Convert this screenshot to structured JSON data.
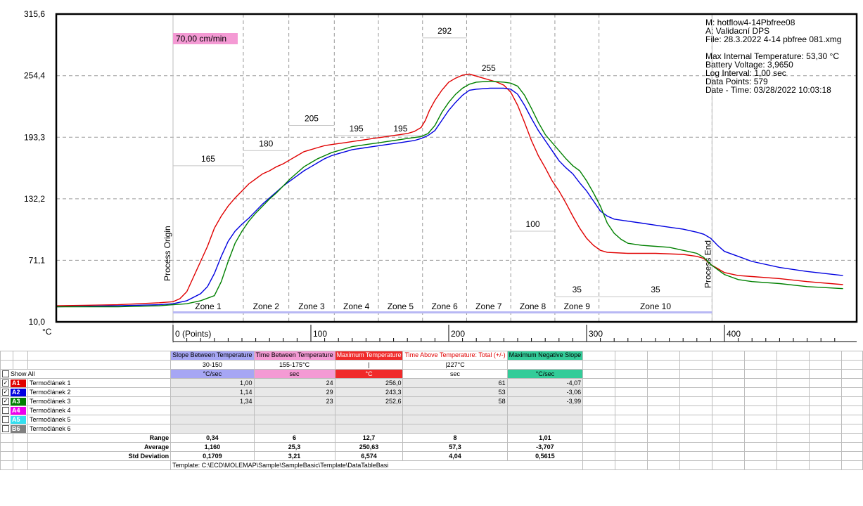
{
  "speed_label": "70,00 cm/min",
  "chart_data": {
    "type": "line",
    "xlabel": "(Points)",
    "ylabel": "°C",
    "x_tick_labels": [
      "0 (Points)",
      "100",
      "200",
      "300",
      "400"
    ],
    "x_ticks": [
      0,
      100,
      200,
      300,
      400
    ],
    "xlim": [
      -85,
      486
    ],
    "y_ticks": [
      "315,6",
      "254,4",
      "193,3",
      "132,2",
      "71,1",
      "10,0"
    ],
    "y_tick_values": [
      315.6,
      254.4,
      193.3,
      132.2,
      71.1,
      10.0
    ],
    "ylim": [
      10.0,
      315.6
    ],
    "grid": true,
    "process_origin_label": "Process Origin",
    "process_origin_x": 0,
    "process_end_label": "Process End",
    "process_end_x": 391,
    "zones": [
      {
        "name": "Zone 1",
        "start": 0,
        "end": 51,
        "setpoint": "165",
        "setpoint_value": 165
      },
      {
        "name": "Zone 2",
        "start": 51,
        "end": 84,
        "setpoint": "180",
        "setpoint_value": 180
      },
      {
        "name": "Zone 3",
        "start": 84,
        "end": 117,
        "setpoint": "205",
        "setpoint_value": 205
      },
      {
        "name": "Zone 4",
        "start": 117,
        "end": 149,
        "setpoint": "195",
        "setpoint_value": 195
      },
      {
        "name": "Zone 5",
        "start": 149,
        "end": 181,
        "setpoint": "195",
        "setpoint_value": 195
      },
      {
        "name": "Zone 6",
        "start": 181,
        "end": 213,
        "setpoint": "292",
        "setpoint_value": 292
      },
      {
        "name": "Zone 7",
        "start": 213,
        "end": 245,
        "setpoint": "255",
        "setpoint_value": 255
      },
      {
        "name": "Zone 8",
        "start": 245,
        "end": 277,
        "setpoint": "100",
        "setpoint_value": 100
      },
      {
        "name": "Zone 9",
        "start": 277,
        "end": 309,
        "setpoint": "35",
        "setpoint_value": 35
      },
      {
        "name": "Zone 10",
        "start": 309,
        "end": 391,
        "setpoint": "35",
        "setpoint_value": 35
      }
    ],
    "info": [
      "M: hotflow4-14Pbfree08",
      "A: Validacní DPS",
      "File: 28.3.2022 4-14 pbfree 081.xmg",
      "",
      "Max Internal Temperature:  53,30 °C",
      "Battery Voltage: 3,9650",
      "Log Interval: 1,00 sec",
      "Data Points: 579",
      "Date - Time: 03/28/2022 10:03:18"
    ],
    "series": [
      {
        "name": "A1",
        "color": "#e00000",
        "points": [
          [
            -85,
            26
          ],
          [
            -40,
            27
          ],
          [
            -10,
            29
          ],
          [
            0,
            30
          ],
          [
            5,
            33
          ],
          [
            10,
            40
          ],
          [
            15,
            55
          ],
          [
            20,
            70
          ],
          [
            25,
            85
          ],
          [
            30,
            103
          ],
          [
            35,
            115
          ],
          [
            40,
            125
          ],
          [
            45,
            133
          ],
          [
            50,
            140
          ],
          [
            55,
            147
          ],
          [
            60,
            152
          ],
          [
            65,
            157
          ],
          [
            70,
            160
          ],
          [
            75,
            164
          ],
          [
            80,
            167
          ],
          [
            85,
            171
          ],
          [
            90,
            175
          ],
          [
            95,
            179
          ],
          [
            100,
            181
          ],
          [
            105,
            183
          ],
          [
            110,
            185
          ],
          [
            115,
            186
          ],
          [
            120,
            187
          ],
          [
            125,
            188
          ],
          [
            130,
            189
          ],
          [
            135,
            190
          ],
          [
            140,
            191
          ],
          [
            145,
            192
          ],
          [
            150,
            193
          ],
          [
            155,
            194
          ],
          [
            160,
            195
          ],
          [
            165,
            196
          ],
          [
            170,
            197
          ],
          [
            175,
            199
          ],
          [
            180,
            203
          ],
          [
            183,
            210
          ],
          [
            186,
            220
          ],
          [
            190,
            230
          ],
          [
            195,
            240
          ],
          [
            200,
            248
          ],
          [
            205,
            252
          ],
          [
            210,
            255
          ],
          [
            215,
            256
          ],
          [
            220,
            254
          ],
          [
            225,
            252
          ],
          [
            230,
            250
          ],
          [
            235,
            248
          ],
          [
            240,
            245
          ],
          [
            245,
            238
          ],
          [
            250,
            225
          ],
          [
            255,
            208
          ],
          [
            260,
            190
          ],
          [
            265,
            175
          ],
          [
            270,
            163
          ],
          [
            275,
            150
          ],
          [
            280,
            140
          ],
          [
            285,
            128
          ],
          [
            290,
            115
          ],
          [
            295,
            103
          ],
          [
            300,
            93
          ],
          [
            305,
            86
          ],
          [
            310,
            81
          ],
          [
            315,
            79
          ],
          [
            330,
            78
          ],
          [
            350,
            78
          ],
          [
            370,
            77
          ],
          [
            380,
            75
          ],
          [
            385,
            73
          ],
          [
            390,
            67
          ],
          [
            395,
            63
          ],
          [
            400,
            59
          ],
          [
            410,
            56
          ],
          [
            420,
            55
          ],
          [
            440,
            53
          ],
          [
            460,
            50
          ],
          [
            486,
            47
          ]
        ]
      },
      {
        "name": "A2",
        "color": "#0000e0",
        "points": [
          [
            -85,
            25
          ],
          [
            -40,
            26
          ],
          [
            -10,
            27
          ],
          [
            0,
            28
          ],
          [
            10,
            31
          ],
          [
            20,
            38
          ],
          [
            25,
            45
          ],
          [
            30,
            58
          ],
          [
            35,
            75
          ],
          [
            40,
            90
          ],
          [
            45,
            100
          ],
          [
            50,
            107
          ],
          [
            55,
            113
          ],
          [
            60,
            120
          ],
          [
            65,
            127
          ],
          [
            70,
            133
          ],
          [
            75,
            139
          ],
          [
            80,
            145
          ],
          [
            85,
            150
          ],
          [
            90,
            155
          ],
          [
            95,
            160
          ],
          [
            100,
            164
          ],
          [
            105,
            168
          ],
          [
            110,
            172
          ],
          [
            115,
            175
          ],
          [
            120,
            177
          ],
          [
            125,
            179
          ],
          [
            130,
            181
          ],
          [
            135,
            182
          ],
          [
            140,
            183
          ],
          [
            145,
            184
          ],
          [
            150,
            185
          ],
          [
            155,
            186
          ],
          [
            160,
            187
          ],
          [
            165,
            188
          ],
          [
            170,
            189
          ],
          [
            175,
            190
          ],
          [
            180,
            192
          ],
          [
            185,
            195
          ],
          [
            190,
            200
          ],
          [
            195,
            210
          ],
          [
            200,
            220
          ],
          [
            205,
            228
          ],
          [
            210,
            235
          ],
          [
            215,
            240
          ],
          [
            220,
            241
          ],
          [
            230,
            242
          ],
          [
            240,
            242
          ],
          [
            245,
            241
          ],
          [
            250,
            236
          ],
          [
            255,
            225
          ],
          [
            260,
            212
          ],
          [
            265,
            200
          ],
          [
            270,
            190
          ],
          [
            275,
            180
          ],
          [
            280,
            170
          ],
          [
            285,
            163
          ],
          [
            290,
            157
          ],
          [
            295,
            148
          ],
          [
            300,
            140
          ],
          [
            305,
            130
          ],
          [
            310,
            120
          ],
          [
            315,
            115
          ],
          [
            320,
            112
          ],
          [
            330,
            110
          ],
          [
            340,
            108
          ],
          [
            350,
            106
          ],
          [
            360,
            104
          ],
          [
            370,
            102
          ],
          [
            380,
            99
          ],
          [
            385,
            97
          ],
          [
            390,
            93
          ],
          [
            395,
            86
          ],
          [
            400,
            80
          ],
          [
            410,
            75
          ],
          [
            420,
            70
          ],
          [
            440,
            64
          ],
          [
            460,
            60
          ],
          [
            486,
            56
          ]
        ]
      },
      {
        "name": "A3",
        "color": "#008000",
        "points": [
          [
            -85,
            25
          ],
          [
            -40,
            25
          ],
          [
            -10,
            26
          ],
          [
            0,
            27
          ],
          [
            10,
            28
          ],
          [
            20,
            31
          ],
          [
            30,
            36
          ],
          [
            35,
            50
          ],
          [
            40,
            70
          ],
          [
            45,
            88
          ],
          [
            50,
            100
          ],
          [
            55,
            110
          ],
          [
            60,
            118
          ],
          [
            65,
            125
          ],
          [
            70,
            132
          ],
          [
            75,
            138
          ],
          [
            80,
            145
          ],
          [
            85,
            152
          ],
          [
            90,
            158
          ],
          [
            95,
            164
          ],
          [
            100,
            168
          ],
          [
            105,
            172
          ],
          [
            110,
            175
          ],
          [
            115,
            178
          ],
          [
            120,
            180
          ],
          [
            125,
            182
          ],
          [
            130,
            184
          ],
          [
            135,
            185
          ],
          [
            140,
            186
          ],
          [
            145,
            187
          ],
          [
            150,
            188
          ],
          [
            155,
            189
          ],
          [
            160,
            190
          ],
          [
            165,
            191
          ],
          [
            170,
            192
          ],
          [
            175,
            193
          ],
          [
            180,
            194
          ],
          [
            185,
            197
          ],
          [
            190,
            205
          ],
          [
            195,
            218
          ],
          [
            200,
            228
          ],
          [
            205,
            236
          ],
          [
            210,
            242
          ],
          [
            215,
            246
          ],
          [
            220,
            248
          ],
          [
            230,
            249
          ],
          [
            240,
            248
          ],
          [
            245,
            247
          ],
          [
            250,
            244
          ],
          [
            255,
            235
          ],
          [
            260,
            222
          ],
          [
            265,
            208
          ],
          [
            270,
            196
          ],
          [
            275,
            188
          ],
          [
            280,
            180
          ],
          [
            285,
            172
          ],
          [
            290,
            165
          ],
          [
            295,
            160
          ],
          [
            300,
            150
          ],
          [
            305,
            138
          ],
          [
            310,
            125
          ],
          [
            315,
            108
          ],
          [
            320,
            98
          ],
          [
            325,
            92
          ],
          [
            330,
            88
          ],
          [
            340,
            86
          ],
          [
            350,
            85
          ],
          [
            360,
            84
          ],
          [
            370,
            81
          ],
          [
            380,
            78
          ],
          [
            385,
            74
          ],
          [
            390,
            67
          ],
          [
            395,
            62
          ],
          [
            400,
            57
          ],
          [
            410,
            52
          ],
          [
            420,
            50
          ],
          [
            440,
            48
          ],
          [
            460,
            45
          ],
          [
            486,
            43
          ]
        ]
      }
    ]
  },
  "table": {
    "columns": [
      {
        "title": "Slope Between Temperature",
        "range": "30-150",
        "unit": "°C/sec",
        "head_bg": "#a6a6f4",
        "unit_bg": "#a6a6f4",
        "title_color": "#000"
      },
      {
        "title": "Time Between Temperature",
        "range": "155-175°C",
        "unit": "sec",
        "head_bg": "#f49ad4",
        "unit_bg": "#f49ad4",
        "title_color": "#000"
      },
      {
        "title": "Maximum Temperature",
        "range": "|",
        "unit": "°C",
        "head_bg": "#f02a2a",
        "unit_bg": "#f02a2a",
        "title_color": "#fff"
      },
      {
        "title": "Time Above Temperature: Total (+/-)",
        "range": "|227°C",
        "unit": "sec",
        "head_bg": "#ffffff",
        "unit_bg": "#ffffff",
        "title_color": "#e00000"
      },
      {
        "title": "Maximum Negative Slope",
        "range": "",
        "unit": "°C/sec",
        "head_bg": "#33cc99",
        "unit_bg": "#33cc99",
        "title_color": "#000"
      }
    ],
    "show_all": "Show All",
    "rows": [
      {
        "id": "A1",
        "color": "#e00000",
        "name": "Termočlánek 1",
        "checked": true,
        "values": [
          "1,00",
          "24",
          "256,0",
          "61",
          "-4,07"
        ]
      },
      {
        "id": "A2",
        "color": "#0000e0",
        "name": "Termočlánek 2",
        "checked": true,
        "values": [
          "1,14",
          "29",
          "243,3",
          "53",
          "-3,06"
        ]
      },
      {
        "id": "A3",
        "color": "#008000",
        "name": "Termočlánek 3",
        "checked": true,
        "values": [
          "1,34",
          "23",
          "252,6",
          "58",
          "-3,99"
        ]
      },
      {
        "id": "A4",
        "color": "#ee00ee",
        "name": "Termočlánek 4",
        "checked": false,
        "values": [
          "",
          "",
          "",
          "",
          ""
        ]
      },
      {
        "id": "A5",
        "color": "#33e0f0",
        "name": "Termočlánek 5",
        "checked": false,
        "values": [
          "",
          "",
          "",
          "",
          ""
        ]
      },
      {
        "id": "B6",
        "color": "#808080",
        "name": "Termočlánek 6",
        "checked": false,
        "values": [
          "",
          "",
          "",
          "",
          ""
        ]
      }
    ],
    "stats": [
      {
        "label": "Range",
        "values": [
          "0,34",
          "6",
          "12,7",
          "8",
          "1,01"
        ]
      },
      {
        "label": "Average",
        "values": [
          "1,160",
          "25,3",
          "250,63",
          "57,3",
          "-3,707"
        ]
      },
      {
        "label": "Std Deviation",
        "values": [
          "0,1709",
          "3,21",
          "6,574",
          "4,04",
          "0,5615"
        ]
      }
    ],
    "template_path": "Template: C:\\ECD\\MOLEMAP\\Sample\\SampleBasic\\Template\\DataTableBasi"
  }
}
